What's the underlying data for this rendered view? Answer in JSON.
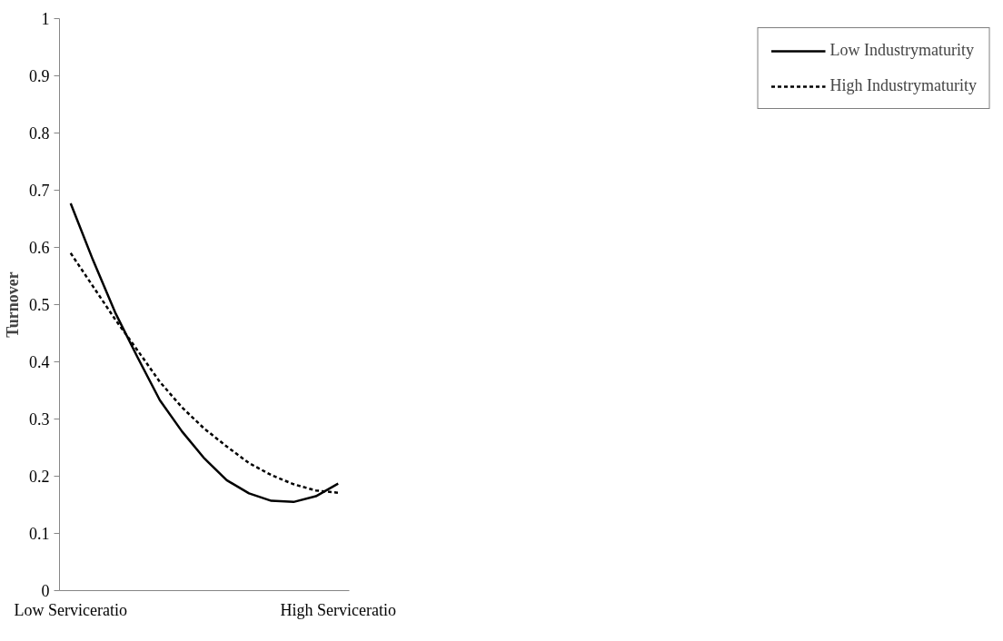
{
  "chart_data": {
    "type": "line",
    "ylabel": "Turnover",
    "categories": [
      "Low Serviceratio",
      null,
      null,
      null,
      null,
      null,
      null,
      null,
      null,
      null,
      null,
      null,
      "High Serviceratio"
    ],
    "ylim": [
      0,
      1
    ],
    "yticks": [
      0,
      0.1,
      0.2,
      0.3,
      0.4,
      0.5,
      0.6,
      0.7,
      0.8,
      0.9,
      1
    ],
    "grid": false,
    "legend": "right",
    "marker": "none",
    "series": [
      {
        "name": "Low Industrymaturity",
        "color": "#000000",
        "line_style": "solid",
        "values": [
          0.677,
          0.578,
          0.486,
          0.408,
          0.333,
          0.278,
          0.231,
          0.193,
          0.17,
          0.157,
          0.155,
          0.165,
          0.187
        ]
      },
      {
        "name": "High Industrymaturity",
        "color": "#000000",
        "line_style": "dashed",
        "values": [
          0.59,
          0.532,
          0.474,
          0.42,
          0.365,
          0.32,
          0.283,
          0.252,
          0.223,
          0.202,
          0.186,
          0.175,
          0.171
        ]
      }
    ]
  }
}
